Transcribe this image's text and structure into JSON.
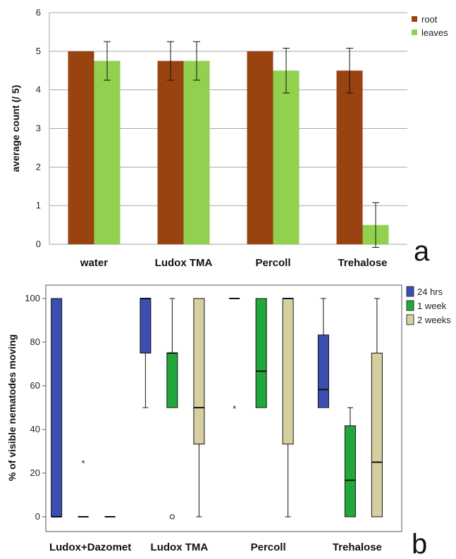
{
  "chart_data": [
    {
      "type": "bar",
      "panel_label": "a",
      "categories": [
        "water",
        "Ludox TMA",
        "Percoll",
        "Trehalose"
      ],
      "series": [
        {
          "name": "root",
          "color": "#994410",
          "values": [
            5.0,
            4.75,
            5.0,
            4.5
          ],
          "errors": [
            0,
            0.5,
            0,
            0.58
          ]
        },
        {
          "name": "leaves",
          "color": "#92D050",
          "values": [
            4.75,
            4.75,
            4.5,
            0.5
          ],
          "errors": [
            0.5,
            0.5,
            0.58,
            0.58
          ]
        }
      ],
      "ylabel": "average count (/ 5)",
      "ylim": [
        0,
        6
      ],
      "yticks": [
        "0",
        "1",
        "2",
        "3",
        "4",
        "5",
        "6"
      ],
      "grid": true,
      "legend_position": "right"
    },
    {
      "type": "box",
      "panel_label": "b",
      "categories": [
        "Ludox+Dazomet",
        "Ludox TMA",
        "Percoll",
        "Trehalose"
      ],
      "series": [
        {
          "name": "24 hrs",
          "color": "#3A4FB0",
          "boxes": [
            {
              "min": 0,
              "q1": 0,
              "median": 0,
              "q3": 100,
              "max": 100,
              "outliers": []
            },
            {
              "min": 50,
              "q1": 75,
              "median": 100,
              "q3": 100,
              "max": 100,
              "outliers": []
            },
            {
              "min": 100,
              "q1": 100,
              "median": 100,
              "q3": 100,
              "max": 100,
              "outliers": [
                {
                  "v": 50,
                  "mark": "*"
                }
              ]
            },
            {
              "min": 50,
              "q1": 50,
              "median": 58.3,
              "q3": 83.3,
              "max": 100,
              "outliers": []
            }
          ]
        },
        {
          "name": "1 week",
          "color": "#22A83A",
          "boxes": [
            {
              "min": 0,
              "q1": 0,
              "median": 0,
              "q3": 0,
              "max": 0,
              "outliers": [
                {
                  "v": 25,
                  "mark": "*"
                }
              ]
            },
            {
              "min": 50,
              "q1": 50,
              "median": 75,
              "q3": 75,
              "max": 100,
              "outliers": [
                {
                  "v": 0,
                  "mark": "o"
                }
              ]
            },
            {
              "min": 50,
              "q1": 50,
              "median": 66.7,
              "q3": 100,
              "max": 100,
              "outliers": []
            },
            {
              "min": 0,
              "q1": 0,
              "median": 16.7,
              "q3": 41.7,
              "max": 50,
              "outliers": []
            }
          ]
        },
        {
          "name": "2 weeks",
          "color": "#D8CFA0",
          "boxes": [
            {
              "min": 0,
              "q1": 0,
              "median": 0,
              "q3": 0,
              "max": 0,
              "outliers": []
            },
            {
              "min": 0,
              "q1": 33.3,
              "median": 50,
              "q3": 100,
              "max": 100,
              "outliers": []
            },
            {
              "min": 0,
              "q1": 33.3,
              "median": 100,
              "q3": 100,
              "max": 100,
              "outliers": []
            },
            {
              "min": 0,
              "q1": 0,
              "median": 25,
              "q3": 75,
              "max": 100,
              "outliers": []
            }
          ]
        }
      ],
      "ylabel": "% of visible nematodes moving",
      "ylim": [
        0,
        100
      ],
      "yticks": [
        "0",
        "20",
        "40",
        "60",
        "80",
        "100"
      ],
      "grid": false,
      "legend_position": "top-right"
    }
  ]
}
